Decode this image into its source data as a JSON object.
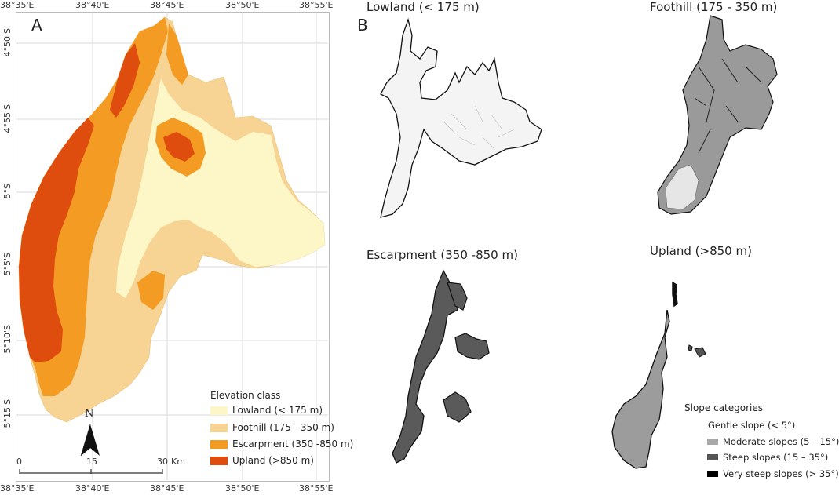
{
  "panel_a": {
    "letter": "A",
    "top_coords": [
      "38°35'E",
      "38°40'E",
      "38°45'E",
      "38°50'E",
      "38°55'E"
    ],
    "bottom_coords": [
      "38°35'E",
      "38°40'E",
      "38°45'E",
      "38°50'E",
      "38°55'E"
    ],
    "left_coords": [
      "4°50'S",
      "4°55'S",
      "5°S",
      "5°5'S",
      "5°10'S",
      "5°15'S"
    ],
    "north_label": "N",
    "scale": {
      "zero": "0",
      "mid": "15",
      "end": "30",
      "unit": "Km"
    },
    "legend": {
      "title": "Elevation class",
      "items": [
        {
          "label": "Lowland (< 175 m)",
          "color": "#fdf7c7"
        },
        {
          "label": "Foothill (175 - 350 m)",
          "color": "#f7d493"
        },
        {
          "label": "Escarpment (350 -850 m)",
          "color": "#f39b22"
        },
        {
          "label": "Upland (>850 m)",
          "color": "#de4d0d"
        }
      ]
    }
  },
  "panel_b": {
    "letter": "B",
    "titles": {
      "lowland": "Lowland (< 175 m)",
      "foothill": "Foothill (175 - 350 m)",
      "escarpment": "Escarpment (350 -850 m)",
      "upland": "Upland (>850 m)"
    },
    "slope_legend": {
      "title": "Slope categories",
      "items": [
        {
          "label": "Gentle slope (< 5°)",
          "color": "#ffffff"
        },
        {
          "label": "Moderate slopes (5 – 15°)",
          "color": "#a8a8a8"
        },
        {
          "label": "Steep slopes (15 – 35°)",
          "color": "#555555"
        },
        {
          "label": "Very steep slopes (> 35°)",
          "color": "#000000"
        }
      ]
    }
  }
}
